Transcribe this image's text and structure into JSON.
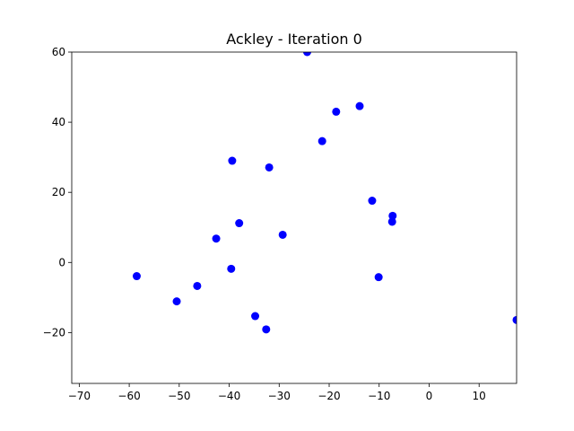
{
  "chart_data": {
    "type": "scatter",
    "title": "Ackley - Iteration 0",
    "xlabel": "",
    "ylabel": "",
    "xlim": [
      -71.5,
      17.5
    ],
    "ylim": [
      -34.5,
      60
    ],
    "xticks": [
      -70,
      -60,
      -50,
      -40,
      -30,
      -20,
      -10,
      0,
      10
    ],
    "yticks": [
      -20,
      0,
      20,
      40,
      60
    ],
    "xtick_labels": [
      "−70",
      "−60",
      "−50",
      "−40",
      "−30",
      "−20",
      "−10",
      "0",
      "10"
    ],
    "ytick_labels": [
      "−20",
      "0",
      "20",
      "40",
      "60"
    ],
    "grid": false,
    "marker_color": "#0000ff",
    "points": [
      {
        "x": -24.4,
        "y": 60.0
      },
      {
        "x": -13.9,
        "y": 44.6
      },
      {
        "x": -18.6,
        "y": 43.0
      },
      {
        "x": -21.4,
        "y": 34.6
      },
      {
        "x": -39.4,
        "y": 29.0
      },
      {
        "x": -32.0,
        "y": 27.1
      },
      {
        "x": -11.4,
        "y": 17.6
      },
      {
        "x": -7.3,
        "y": 13.3
      },
      {
        "x": -7.4,
        "y": 11.6
      },
      {
        "x": -38.0,
        "y": 11.2
      },
      {
        "x": -29.3,
        "y": 7.9
      },
      {
        "x": -42.6,
        "y": 6.8
      },
      {
        "x": -39.6,
        "y": -1.8
      },
      {
        "x": -58.5,
        "y": -3.9
      },
      {
        "x": -10.1,
        "y": -4.2
      },
      {
        "x": -46.4,
        "y": -6.7
      },
      {
        "x": -50.5,
        "y": -11.1
      },
      {
        "x": -34.8,
        "y": -15.3
      },
      {
        "x": -32.6,
        "y": -19.1
      },
      {
        "x": 17.5,
        "y": -16.4
      }
    ]
  }
}
